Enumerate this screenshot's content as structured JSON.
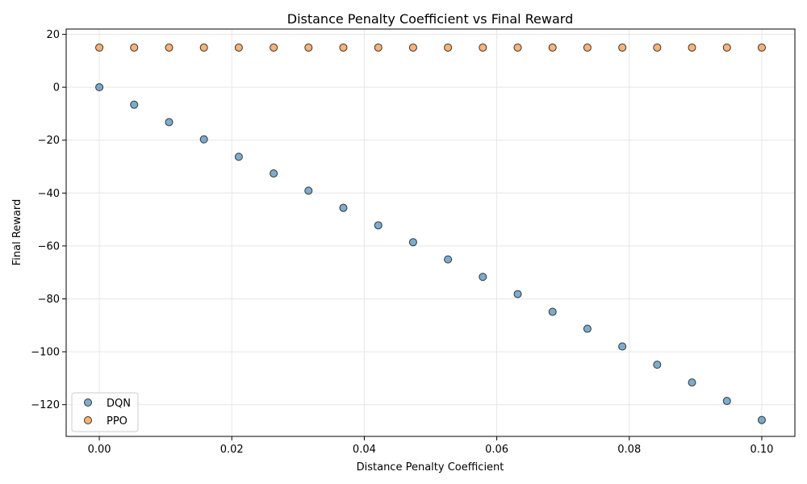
{
  "chart_data": {
    "type": "scatter",
    "title": "Distance Penalty Coefficient vs Final Reward",
    "xlabel": "Distance Penalty Coefficient",
    "ylabel": "Final Reward",
    "xlim": [
      -0.005,
      0.105
    ],
    "ylim": [
      -132,
      22
    ],
    "xticks": [
      0.0,
      0.02,
      0.04,
      0.06,
      0.08,
      0.1
    ],
    "xtick_labels": [
      "0.00",
      "0.02",
      "0.04",
      "0.06",
      "0.08",
      "0.10"
    ],
    "yticks": [
      -120,
      -100,
      -80,
      -60,
      -40,
      -20,
      0,
      20
    ],
    "ytick_labels": [
      "−120",
      "−100",
      "−80",
      "−60",
      "−40",
      "−20",
      "0",
      "20"
    ],
    "grid": true,
    "legend_position": "lower-left",
    "x": [
      0.0,
      0.00526,
      0.01053,
      0.01579,
      0.02105,
      0.02632,
      0.03158,
      0.03684,
      0.04211,
      0.04737,
      0.05263,
      0.05789,
      0.06316,
      0.06842,
      0.07368,
      0.07895,
      0.08421,
      0.08947,
      0.09474,
      0.1
    ],
    "series": [
      {
        "name": "DQN",
        "color": "#1f77b4",
        "values": [
          0.0,
          -6.6,
          -13.2,
          -19.7,
          -26.3,
          -32.6,
          -39.1,
          -45.6,
          -52.2,
          -58.6,
          -65.1,
          -71.7,
          -78.2,
          -84.9,
          -91.3,
          -98.0,
          -104.9,
          -111.6,
          -118.6,
          -125.8
        ]
      },
      {
        "name": "PPO",
        "color": "#ff7f0e",
        "values": [
          15,
          15,
          15,
          15,
          15,
          15,
          15,
          15,
          15,
          15,
          15,
          15,
          15,
          15,
          15,
          15,
          15,
          15,
          15,
          15
        ]
      }
    ]
  }
}
